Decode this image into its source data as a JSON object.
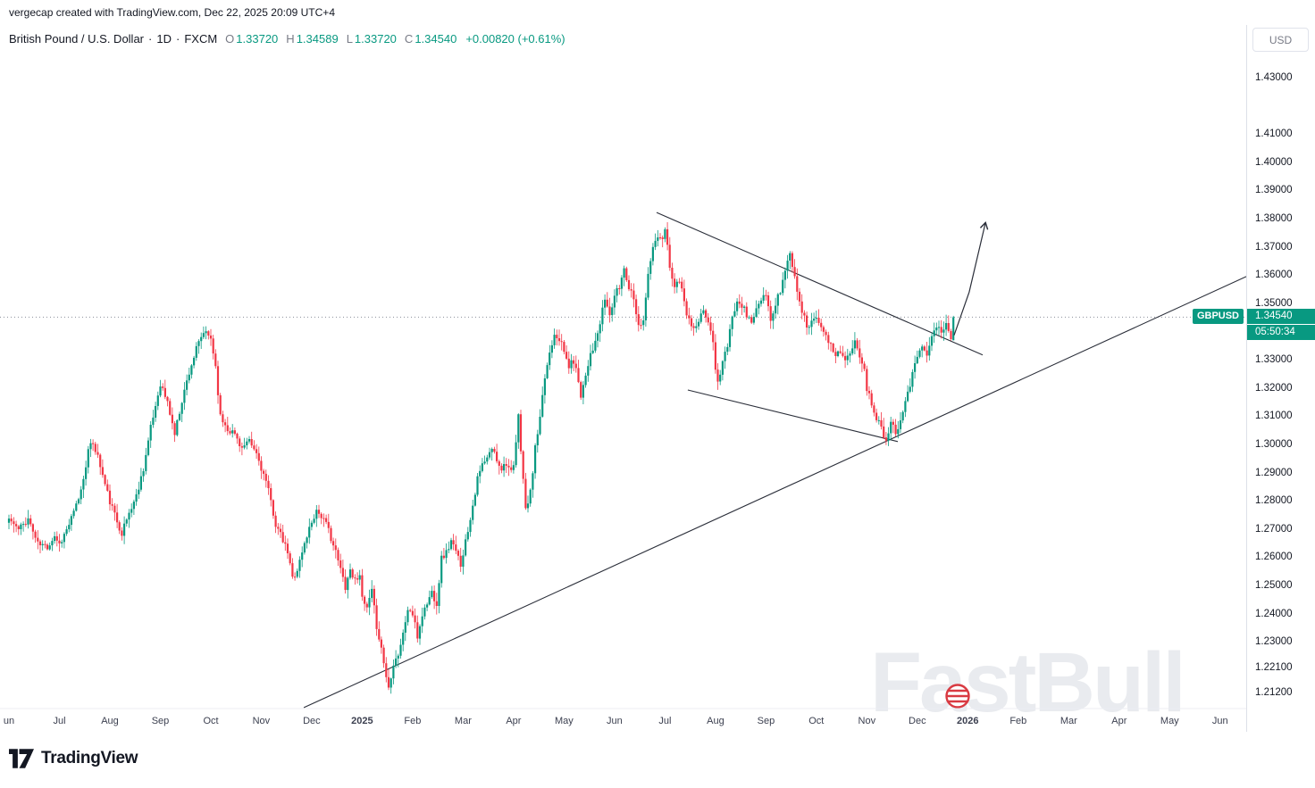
{
  "attribution": "vergecap created with TradingView.com, Dec 22, 2025 20:09 UTC+4",
  "header": {
    "symbol_title": "British Pound / U.S. Dollar",
    "separator": "·",
    "timeframe": "1D",
    "exchange": "FXCM",
    "ohlc": {
      "o_label": "O",
      "o_value": "1.33720",
      "h_label": "H",
      "h_value": "1.34589",
      "l_label": "L",
      "l_value": "1.33720",
      "c_label": "C",
      "c_value": "1.34540",
      "change_value": "+0.00820 (+0.61%)"
    }
  },
  "price_axis": {
    "currency_label": "USD",
    "labels": [
      "1.43000",
      "1.41000",
      "1.40000",
      "1.39000",
      "1.38000",
      "1.37000",
      "1.36000",
      "1.35000",
      "1.33000",
      "1.32000",
      "1.31000",
      "1.30000",
      "1.29000",
      "1.28000",
      "1.27000",
      "1.26000",
      "1.25000",
      "1.24000",
      "1.23000",
      "1.22100",
      "1.21200"
    ],
    "current": {
      "symbol_tag": "GBPUSD",
      "price": "1.34540",
      "countdown": "05:50:34"
    }
  },
  "time_axis": {
    "labels": [
      "un",
      "Jul",
      "Aug",
      "Sep",
      "Oct",
      "Nov",
      "Dec",
      "2025",
      "Feb",
      "Mar",
      "Apr",
      "May",
      "Jun",
      "Jul",
      "Aug",
      "Sep",
      "Oct",
      "Nov",
      "Dec",
      "2026",
      "Feb",
      "Mar",
      "Apr",
      "May",
      "Jun"
    ]
  },
  "watermark": {
    "text": "FastBull"
  },
  "footer": {
    "brand": "TradingView"
  },
  "colors": {
    "up": "#089981",
    "down": "#f23645",
    "text": "#131722",
    "muted": "#787b86",
    "axis_line": "#dde0e8",
    "drawing": "#2a2e39",
    "price_line": "#8a8e99",
    "watermark": "#e9ebef",
    "price_label_bg": "#089981"
  },
  "chart_data": {
    "type": "candlestick",
    "title": "British Pound / U.S. Dollar",
    "symbol": "GBPUSD",
    "timeframe": "1D",
    "exchange": "FXCM",
    "x_axis": {
      "start": "Jun 2024",
      "last_data": "Dec 22 2025",
      "projection_until": "Jun 2026"
    },
    "y_axis": {
      "visible_min": 1.212,
      "visible_max": 1.43,
      "tick_step": 0.01,
      "grid": false
    },
    "current_price": 1.3454,
    "last_candle": {
      "open": 1.3372,
      "high": 1.34589,
      "low": 1.3372,
      "close": 1.3454,
      "change": "+0.00820",
      "change_pct": "+0.61%"
    },
    "days_per_month": 21,
    "noise_seed": 11,
    "close_path_anchors": [
      [
        0,
        1.274
      ],
      [
        4,
        1.27
      ],
      [
        8,
        1.274
      ],
      [
        12,
        1.265
      ],
      [
        16,
        1.264
      ],
      [
        19,
        1.268
      ],
      [
        21,
        1.265
      ],
      [
        24,
        1.27
      ],
      [
        27,
        1.276
      ],
      [
        30,
        1.284
      ],
      [
        33,
        1.298
      ],
      [
        35,
        1.301
      ],
      [
        37,
        1.296
      ],
      [
        40,
        1.286
      ],
      [
        42,
        1.28
      ],
      [
        45,
        1.273
      ],
      [
        47,
        1.269
      ],
      [
        50,
        1.276
      ],
      [
        53,
        1.282
      ],
      [
        56,
        1.292
      ],
      [
        59,
        1.306
      ],
      [
        63,
        1.322
      ],
      [
        66,
        1.315
      ],
      [
        69,
        1.304
      ],
      [
        72,
        1.316
      ],
      [
        75,
        1.326
      ],
      [
        78,
        1.334
      ],
      [
        81,
        1.34
      ],
      [
        84,
        1.338
      ],
      [
        86,
        1.328
      ],
      [
        88,
        1.31
      ],
      [
        91,
        1.306
      ],
      [
        94,
        1.304
      ],
      [
        97,
        1.299
      ],
      [
        100,
        1.301
      ],
      [
        103,
        1.297
      ],
      [
        105,
        1.292
      ],
      [
        107,
        1.287
      ],
      [
        109,
        1.28
      ],
      [
        111,
        1.272
      ],
      [
        113,
        1.268
      ],
      [
        116,
        1.262
      ],
      [
        118,
        1.253
      ],
      [
        120,
        1.256
      ],
      [
        122,
        1.262
      ],
      [
        124,
        1.268
      ],
      [
        126,
        1.273
      ],
      [
        128,
        1.277
      ],
      [
        130,
        1.275
      ],
      [
        133,
        1.27
      ],
      [
        136,
        1.262
      ],
      [
        138,
        1.256
      ],
      [
        140,
        1.25
      ],
      [
        142,
        1.256
      ],
      [
        144,
        1.252
      ],
      [
        146,
        1.255
      ],
      [
        147,
        1.245
      ],
      [
        149,
        1.242
      ],
      [
        151,
        1.248
      ],
      [
        153,
        1.236
      ],
      [
        155,
        1.228
      ],
      [
        157,
        1.218
      ],
      [
        158,
        1.214
      ],
      [
        160,
        1.223
      ],
      [
        162,
        1.226
      ],
      [
        164,
        1.233
      ],
      [
        166,
        1.242
      ],
      [
        168,
        1.24
      ],
      [
        170,
        1.232
      ],
      [
        172,
        1.24
      ],
      [
        174,
        1.244
      ],
      [
        176,
        1.248
      ],
      [
        178,
        1.244
      ],
      [
        180,
        1.26
      ],
      [
        182,
        1.262
      ],
      [
        184,
        1.266
      ],
      [
        186,
        1.262
      ],
      [
        188,
        1.258
      ],
      [
        189,
        1.262
      ],
      [
        191,
        1.27
      ],
      [
        193,
        1.279
      ],
      [
        195,
        1.288
      ],
      [
        197,
        1.293
      ],
      [
        199,
        1.295
      ],
      [
        201,
        1.299
      ],
      [
        203,
        1.295
      ],
      [
        205,
        1.292
      ],
      [
        207,
        1.294
      ],
      [
        209,
        1.29
      ],
      [
        210,
        1.292
      ],
      [
        212,
        1.31
      ],
      [
        214,
        1.288
      ],
      [
        215,
        1.277
      ],
      [
        217,
        1.283
      ],
      [
        219,
        1.299
      ],
      [
        221,
        1.309
      ],
      [
        223,
        1.324
      ],
      [
        225,
        1.333
      ],
      [
        227,
        1.34
      ],
      [
        229,
        1.338
      ],
      [
        231,
        1.333
      ],
      [
        233,
        1.328
      ],
      [
        235,
        1.33
      ],
      [
        237,
        1.323
      ],
      [
        238,
        1.318
      ],
      [
        240,
        1.325
      ],
      [
        242,
        1.333
      ],
      [
        244,
        1.336
      ],
      [
        246,
        1.343
      ],
      [
        248,
        1.352
      ],
      [
        250,
        1.346
      ],
      [
        252,
        1.353
      ],
      [
        254,
        1.356
      ],
      [
        256,
        1.363
      ],
      [
        258,
        1.356
      ],
      [
        260,
        1.353
      ],
      [
        262,
        1.342
      ],
      [
        264,
        1.345
      ],
      [
        266,
        1.36
      ],
      [
        268,
        1.37
      ],
      [
        270,
        1.374
      ],
      [
        272,
        1.372
      ],
      [
        273,
        1.377
      ],
      [
        275,
        1.364
      ],
      [
        277,
        1.356
      ],
      [
        279,
        1.359
      ],
      [
        281,
        1.35
      ],
      [
        283,
        1.344
      ],
      [
        285,
        1.341
      ],
      [
        287,
        1.343
      ],
      [
        289,
        1.348
      ],
      [
        291,
        1.344
      ],
      [
        293,
        1.336
      ],
      [
        294,
        1.328
      ],
      [
        295,
        1.322
      ],
      [
        297,
        1.33
      ],
      [
        299,
        1.335
      ],
      [
        301,
        1.345
      ],
      [
        303,
        1.352
      ],
      [
        305,
        1.35
      ],
      [
        307,
        1.346
      ],
      [
        309,
        1.344
      ],
      [
        311,
        1.348
      ],
      [
        313,
        1.351
      ],
      [
        315,
        1.353
      ],
      [
        317,
        1.344
      ],
      [
        319,
        1.35
      ],
      [
        321,
        1.355
      ],
      [
        323,
        1.362
      ],
      [
        325,
        1.368
      ],
      [
        326,
        1.364
      ],
      [
        328,
        1.355
      ],
      [
        330,
        1.348
      ],
      [
        332,
        1.342
      ],
      [
        334,
        1.344
      ],
      [
        336,
        1.346
      ],
      [
        338,
        1.343
      ],
      [
        340,
        1.338
      ],
      [
        342,
        1.335
      ],
      [
        344,
        1.332
      ],
      [
        346,
        1.334
      ],
      [
        348,
        1.33
      ],
      [
        350,
        1.332
      ],
      [
        352,
        1.336
      ],
      [
        354,
        1.332
      ],
      [
        356,
        1.328
      ],
      [
        357,
        1.32
      ],
      [
        359,
        1.315
      ],
      [
        361,
        1.31
      ],
      [
        363,
        1.306
      ],
      [
        365,
        1.302
      ],
      [
        367,
        1.309
      ],
      [
        369,
        1.304
      ],
      [
        371,
        1.31
      ],
      [
        373,
        1.316
      ],
      [
        375,
        1.322
      ],
      [
        377,
        1.328
      ],
      [
        378,
        1.332
      ],
      [
        380,
        1.336
      ],
      [
        382,
        1.333
      ],
      [
        384,
        1.338
      ],
      [
        386,
        1.342
      ],
      [
        388,
        1.34
      ],
      [
        390,
        1.343
      ],
      [
        392,
        1.3372
      ],
      [
        393,
        1.3454
      ]
    ],
    "drawings": {
      "ascending_support_line": {
        "from_day": 122.7,
        "from_price": 1.207,
        "to_day": 514.9,
        "to_price": 1.3598
      },
      "descending_resistance_line": {
        "from_day": 269.5,
        "from_price": 1.3825,
        "to_day": 405.2,
        "to_price": 1.332
      },
      "descending_minor_line": {
        "from_day": 282.5,
        "from_price": 1.3196,
        "to_day": 369.9,
        "to_price": 1.3013
      },
      "projection_arrow": {
        "points": [
          [
            393.3,
            1.339
          ],
          [
            399.6,
            1.3543
          ],
          [
            406.3,
            1.3786
          ]
        ]
      }
    }
  }
}
